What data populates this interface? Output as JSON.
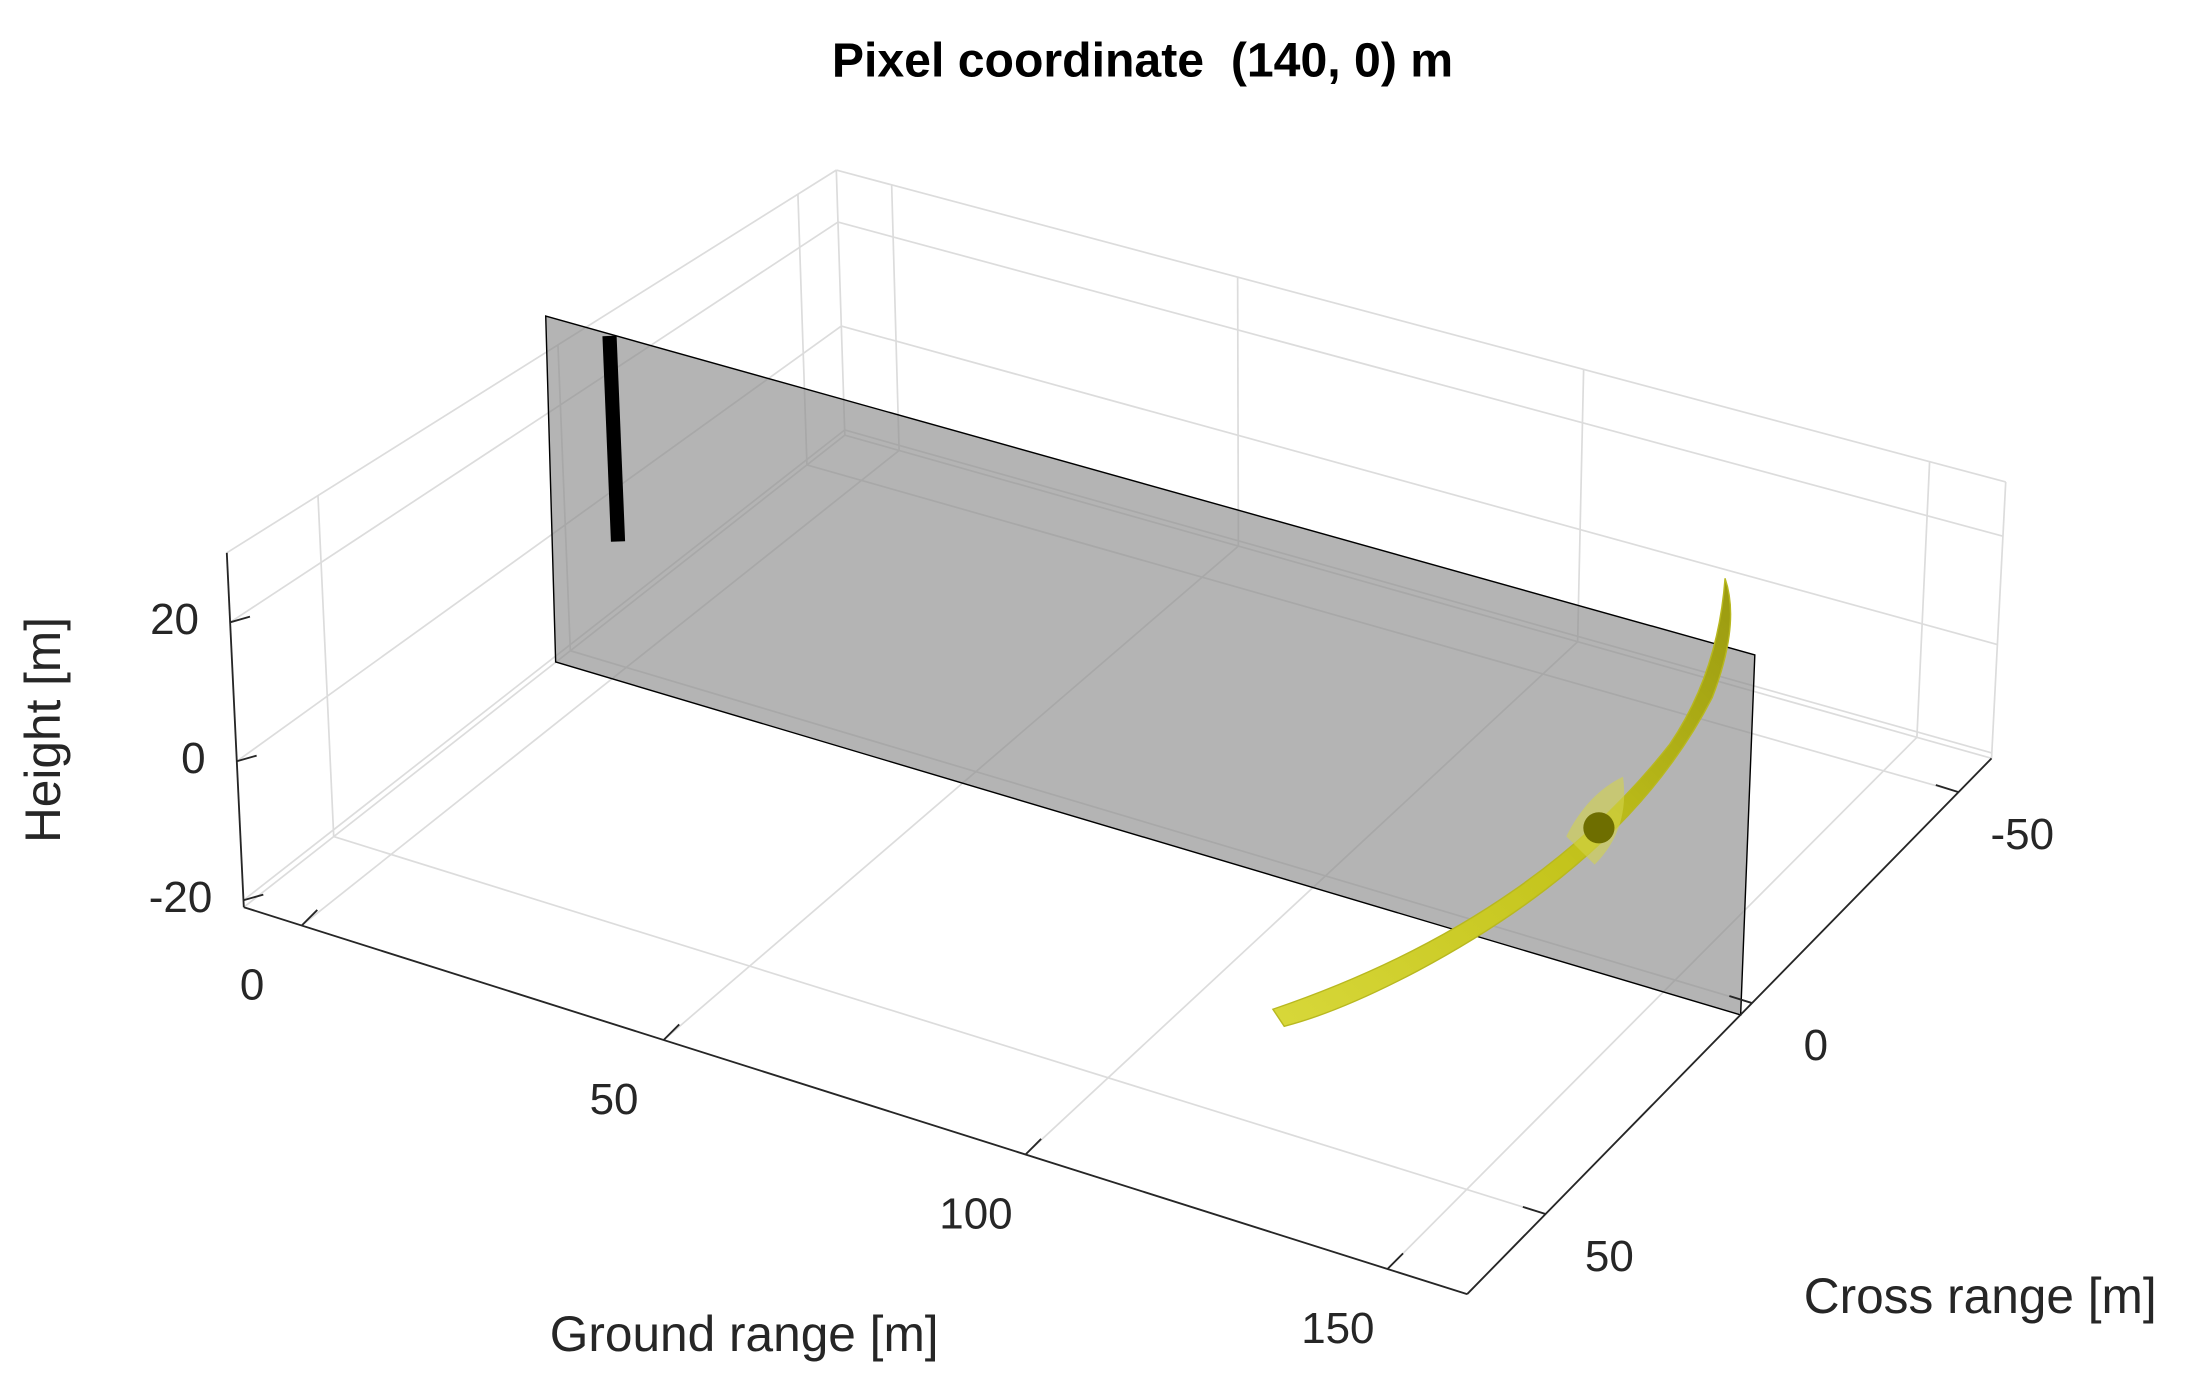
{
  "chart_data": {
    "type": "surface3d",
    "title": "Pixel coordinate  (140, 0) m",
    "xlabel": "Ground range [m]",
    "ylabel": "Cross range [m]",
    "zlabel": "Height [m]",
    "xlim": [
      -8,
      161
    ],
    "ylim": [
      -58,
      69
    ],
    "zlim": [
      -21,
      30
    ],
    "xticks": [
      0,
      50,
      100,
      150
    ],
    "yticks": [
      -50,
      0,
      50
    ],
    "zticks": [
      -20,
      0,
      20
    ],
    "grid": true
  }
}
